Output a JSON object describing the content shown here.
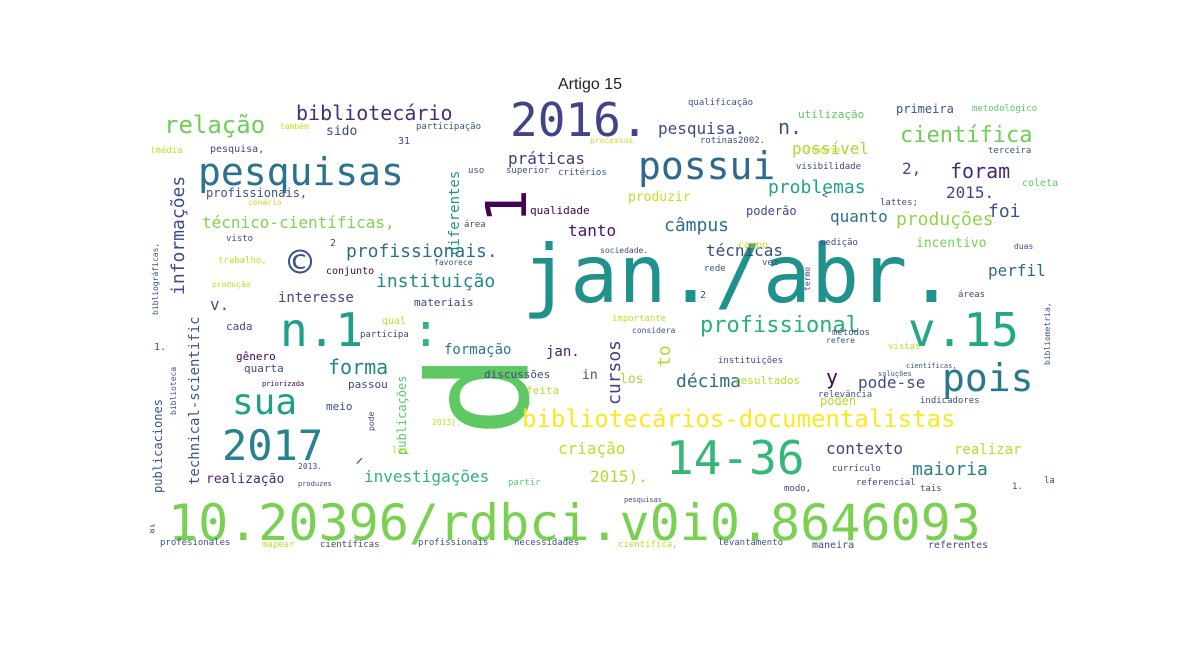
{
  "title": "Artigo 15",
  "words": [
    {
      "text": "10.20396/rdbci.v0i0.8646093",
      "color": "#7ad151"
    },
    {
      "text": "jan./abr.",
      "color": "#21918c"
    },
    {
      "text": "p",
      "color": "#5ec962"
    },
    {
      "text": "v.15",
      "color": "#22a884"
    },
    {
      "text": "n.1",
      "color": "#1f9e89"
    },
    {
      "text": "2017",
      "color": "#26828e"
    },
    {
      "text": "14-36",
      "color": "#35b779"
    },
    {
      "text": "2016.",
      "color": "#414487"
    },
    {
      "text": "pesquisas",
      "color": "#2c728e"
    },
    {
      "text": "possui",
      "color": "#31688e"
    },
    {
      "text": "pois",
      "color": "#2a788e"
    },
    {
      "text": "sua",
      "color": "#1fa187"
    },
    {
      "text": "bibliotecários-documentalistas",
      "color": "#fde725"
    },
    {
      "text": "1",
      "color": "#440154"
    },
    {
      "text": "©",
      "color": "#3b528b"
    },
    {
      "text": ":",
      "color": "#2fb47c"
    },
    {
      "text": ".",
      "color": "#5ec962"
    },
    {
      "text": "relação",
      "color": "#6ece58"
    },
    {
      "text": "bibliotecário",
      "color": "#472d7b"
    },
    {
      "text": "pesquisa.",
      "color": "#3e4989"
    },
    {
      "text": "n.",
      "color": "#3b528b"
    },
    {
      "text": "científica",
      "color": "#6ece58"
    },
    {
      "text": "profissional",
      "color": "#2ab07f"
    },
    {
      "text": "foram",
      "color": "#482878"
    },
    {
      "text": "problemas",
      "color": "#20a486"
    },
    {
      "text": "práticas",
      "color": "#443983"
    },
    {
      "text": "possível",
      "color": "#a5db36"
    },
    {
      "text": "produções",
      "color": "#8fd744"
    },
    {
      "text": "informações",
      "color": "#3e4a89"
    },
    {
      "text": "técnico-científicas,",
      "color": "#7fd34e"
    },
    {
      "text": "profissionais.",
      "color": "#2e6f8e"
    },
    {
      "text": "instituição",
      "color": "#23888e"
    },
    {
      "text": "forma",
      "color": "#25848e"
    },
    {
      "text": "contexto",
      "color": "#3f4788"
    },
    {
      "text": "maioria",
      "color": "#277f8e"
    },
    {
      "text": "investigações",
      "color": "#2fb47c"
    },
    {
      "text": "cursos",
      "color": "#424186"
    },
    {
      "text": "to",
      "color": "#addc30"
    },
    {
      "text": "décima",
      "color": "#2f6c8e"
    },
    {
      "text": "pode-se",
      "color": "#3d4e8a"
    },
    {
      "text": "criação",
      "color": "#bddf26"
    },
    {
      "text": "2015).",
      "color": "#addc30"
    },
    {
      "text": "realizar",
      "color": "#b5de2b"
    },
    {
      "text": "y",
      "color": "#440154"
    },
    {
      "text": "foi",
      "color": "#3b528b"
    },
    {
      "text": "perfil",
      "color": "#31688e"
    },
    {
      "text": "câmpus",
      "color": "#2d708e"
    },
    {
      "text": "técnicas",
      "color": "#3e4989"
    },
    {
      "text": "tanto",
      "color": "#471365"
    },
    {
      "text": "quanto",
      "color": "#2c728e"
    },
    {
      "text": "2015.",
      "color": "#3f4788"
    },
    {
      "text": "2,",
      "color": "#3b528b"
    },
    {
      "text": "interesse",
      "color": "#3e4a89"
    },
    {
      "text": "formação",
      "color": "#2a788e"
    },
    {
      "text": "jan.",
      "color": "#482173"
    },
    {
      "text": "v.",
      "color": "#3b528b"
    },
    {
      "text": "poderão",
      "color": "#3e4989"
    },
    {
      "text": "incentivo",
      "color": "#73d056"
    },
    {
      "text": "produzir",
      "color": "#c2df23"
    },
    {
      "text": "sido",
      "color": "#3e4a89"
    },
    {
      "text": "qualidade",
      "color": "#440154"
    },
    {
      "text": "technical-scientific",
      "color": "#3b528b"
    },
    {
      "text": "diferentes",
      "color": "#21918c"
    },
    {
      "text": "publicações",
      "color": "#5ec962"
    },
    {
      "text": "publicaciones",
      "color": "#3b528b"
    },
    {
      "text": "realização",
      "color": "#482878"
    },
    {
      "text": "resultados",
      "color": "#b5de2b"
    },
    {
      "text": "poden",
      "color": "#b5de2b"
    },
    {
      "text": "los",
      "color": "#a5db36"
    },
    {
      "text": "in",
      "color": "#3b528b"
    },
    {
      "text": "discussões",
      "color": "#3e4989"
    },
    {
      "text": "feita",
      "color": "#b5de2b"
    },
    {
      "text": "passou",
      "color": "#3e4989"
    },
    {
      "text": "quarta",
      "color": "#3e4a89"
    },
    {
      "text": "gênero",
      "color": "#440154"
    },
    {
      "text": "meio",
      "color": "#3e4989"
    },
    {
      "text": "cada",
      "color": "#3e4989"
    },
    {
      "text": "materiais",
      "color": "#3e4989"
    },
    {
      "text": "conjunto",
      "color": "#440154"
    },
    {
      "text": "profissionais,",
      "color": "#3b528b"
    },
    {
      "text": "primeira",
      "color": "#3b528b"
    },
    {
      "text": "metodológico",
      "color": "#5ec962"
    },
    {
      "text": "utilização",
      "color": "#5ec962"
    },
    {
      "text": "qualificação",
      "color": "#3b528b"
    },
    {
      "text": "visibilidade",
      "color": "#3e4989"
    },
    {
      "text": "coleta",
      "color": "#5ec962"
    },
    {
      "text": "terceira",
      "color": "#3b528b"
    },
    {
      "text": "lattes;",
      "color": "#3e4989"
    },
    {
      "text": "superior",
      "color": "#3b528b"
    },
    {
      "text": "critérios",
      "color": "#3b528b"
    },
    {
      "text": "uso",
      "color": "#3b528b"
    },
    {
      "text": "processos",
      "color": "#c2df23"
    },
    {
      "text": "rotinas",
      "color": "#3e4989"
    },
    {
      "text": "2002.",
      "color": "#3e4989"
    },
    {
      "text": "participação",
      "color": "#3b528b"
    },
    {
      "text": "também",
      "color": "#c2df23"
    },
    {
      "text": "pesquisa,",
      "color": "#3e4989"
    },
    {
      "text": "profissionais",
      "color": "#3b528b"
    },
    {
      "text": "necessidades",
      "color": "#3b528b"
    },
    {
      "text": "científica,",
      "color": "#c2df23"
    },
    {
      "text": "levantamento",
      "color": "#3b528b"
    },
    {
      "text": "maneira",
      "color": "#3e4989"
    },
    {
      "text": "referentes",
      "color": "#3e4989"
    },
    {
      "text": "referencial",
      "color": "#3e4989"
    },
    {
      "text": "currículo",
      "color": "#3e4989"
    },
    {
      "text": "indicadores",
      "color": "#3e4989"
    },
    {
      "text": "tais",
      "color": "#3b528b"
    },
    {
      "text": "modo,",
      "color": "#3e4989"
    },
    {
      "text": "partir",
      "color": "#5ec962"
    },
    {
      "text": "profesionales",
      "color": "#3b528b"
    },
    {
      "text": "mapear",
      "color": "#c2df23"
    },
    {
      "text": "científicas",
      "color": "#3e4989"
    },
    {
      "text": "áreas",
      "color": "#3e4989"
    },
    {
      "text": "importante",
      "color": "#c2df23"
    },
    {
      "text": "considera",
      "color": "#3b528b"
    },
    {
      "text": "métodos",
      "color": "#3e4989"
    },
    {
      "text": "instituições",
      "color": "#3e4989"
    },
    {
      "text": "vistas",
      "color": "#c2df23"
    },
    {
      "text": "refere",
      "color": "#3b528b"
    },
    {
      "text": "relevância",
      "color": "#3b528b"
    },
    {
      "text": "campo",
      "color": "#c2df23"
    },
    {
      "text": "medição",
      "color": "#3e4989"
    },
    {
      "text": "rede",
      "color": "#3b528b"
    },
    {
      "text": "vez",
      "color": "#3b528b"
    },
    {
      "text": "área",
      "color": "#3e4989"
    },
    {
      "text": "sociedade.",
      "color": "#3e4989"
    },
    {
      "text": "favorece",
      "color": "#3b528b"
    },
    {
      "text": "trabalho,",
      "color": "#c2df23"
    },
    {
      "text": "produção",
      "color": "#c2df23"
    },
    {
      "text": "visto",
      "color": "#3e4989"
    },
    {
      "text": "cenário",
      "color": "#c2df23"
    },
    {
      "text": "(média",
      "color": "#c2df23"
    },
    {
      "text": "31",
      "color": "#3e4989"
    },
    {
      "text": "qual",
      "color": "#c2df23"
    },
    {
      "text": "participa",
      "color": "#3e4989"
    },
    {
      "text": "las",
      "color": "#c2df23"
    },
    {
      "text": "duas",
      "color": "#3e4989"
    },
    {
      "text": "la",
      "color": "#3e4989"
    },
    {
      "text": "1.",
      "color": "#3b528b"
    },
    {
      "text": "1.",
      "color": "#3e4989"
    },
    {
      "text": "18",
      "color": "#3e4989"
    },
    {
      "text": "2013.",
      "color": "#3e4989"
    },
    {
      "text": "2013).",
      "color": "#c2df23"
    },
    {
      "text": "2.",
      "color": "#c2df23"
    },
    {
      "text": "pesquisas",
      "color": "#3e4989"
    },
    {
      "text": "bibliometria,",
      "color": "#3b528b"
    },
    {
      "text": "bibliográficas,",
      "color": "#3b528b"
    },
    {
      "text": "biblioteca",
      "color": "#3b528b"
    },
    {
      "text": "pode",
      "color": "#3e4989"
    },
    {
      "text": "termo",
      "color": "#3e4989"
    },
    {
      "text": "categoria",
      "color": "#c2df23"
    },
    {
      "text": "priorizada",
      "color": "#440154"
    },
    {
      "text": "produzes",
      "color": "#3e4989"
    },
    {
      "text": "soluções",
      "color": "#3b528b"
    },
    {
      "text": "científicas,",
      "color": "#3b528b"
    },
    {
      "text": "2",
      "color": "#3b528b"
    },
    {
      "text": "2",
      "color": "#3b528b"
    },
    {
      "text": "<",
      "color": "#3e4989"
    },
    {
      "text": "𝄍",
      "color": "#3b528b"
    }
  ]
}
